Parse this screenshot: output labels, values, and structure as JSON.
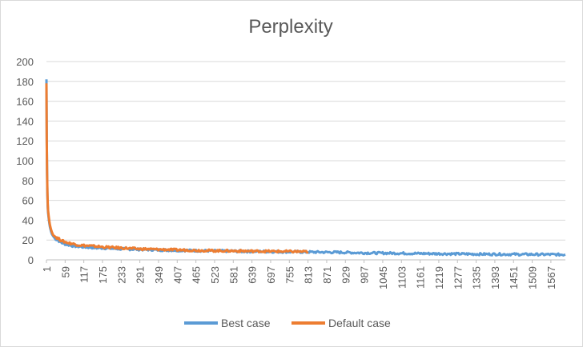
{
  "chart_data": {
    "type": "line",
    "title": "Perplexity",
    "xlabel": "",
    "ylabel": "",
    "ylim": [
      0,
      200
    ],
    "y_ticks": [
      0,
      20,
      40,
      60,
      80,
      100,
      120,
      140,
      160,
      180,
      200
    ],
    "x_ticks": [
      1,
      59,
      117,
      175,
      233,
      291,
      349,
      407,
      465,
      523,
      581,
      639,
      697,
      755,
      813,
      871,
      929,
      987,
      1045,
      1103,
      1161,
      1219,
      1277,
      1335,
      1393,
      1451,
      1509,
      1567
    ],
    "xlim": [
      1,
      1612
    ],
    "grid": true,
    "legend_position": "bottom",
    "series": [
      {
        "name": "Best case",
        "color": "#5b9bd5",
        "x": [
          1,
          2,
          3,
          4,
          5,
          6,
          8,
          10,
          12,
          15,
          18,
          22,
          26,
          30,
          35,
          40,
          45,
          50,
          59,
          70,
          85,
          100,
          117,
          140,
          160,
          175,
          200,
          233,
          260,
          291,
          320,
          349,
          380,
          407,
          440,
          465,
          500,
          523,
          550,
          581,
          610,
          639,
          670,
          697,
          730,
          755,
          790,
          813,
          840,
          871,
          900,
          929,
          960,
          987,
          1020,
          1045,
          1080,
          1103,
          1130,
          1161,
          1190,
          1219,
          1250,
          1277,
          1300,
          1335,
          1360,
          1393,
          1420,
          1451,
          1480,
          1509,
          1540,
          1567,
          1590,
          1612
        ],
        "values": [
          182,
          120,
          85,
          65,
          54,
          48,
          42,
          37,
          33,
          29,
          26,
          24,
          22,
          21,
          20,
          19,
          18,
          17,
          16,
          15,
          14,
          13.5,
          13,
          12.5,
          12,
          12,
          11.5,
          11,
          10.8,
          10.5,
          10.3,
          10,
          9.8,
          9.6,
          9.5,
          9.3,
          9.2,
          9,
          8.9,
          8.8,
          8.6,
          8.5,
          8.4,
          8.3,
          8.2,
          8.1,
          8,
          7.9,
          7.8,
          7.7,
          7.6,
          7.5,
          7.2,
          7,
          6.9,
          6.8,
          6.7,
          6.6,
          6.5,
          6.4,
          6.3,
          6.2,
          6.1,
          6,
          5.9,
          5.8,
          5.7,
          5.7,
          5.6,
          5.6,
          5.5,
          5.5,
          5.4,
          5.4,
          5.3,
          5.3
        ]
      },
      {
        "name": "Default case",
        "color": "#ed7d31",
        "x": [
          1,
          2,
          3,
          4,
          5,
          6,
          8,
          10,
          12,
          15,
          18,
          22,
          26,
          30,
          35,
          40,
          45,
          50,
          59,
          70,
          85,
          100,
          117,
          140,
          160,
          175,
          200,
          233,
          260,
          291,
          320,
          349,
          380,
          407,
          440,
          465,
          500,
          523,
          550,
          581,
          610,
          639,
          670,
          697,
          730,
          755,
          790,
          813
        ],
        "values": [
          178,
          118,
          88,
          68,
          57,
          50,
          44,
          39,
          35,
          31,
          28,
          26,
          24,
          23,
          22,
          21,
          20,
          19,
          18,
          17,
          16,
          15,
          14.5,
          14,
          13.5,
          13,
          12.5,
          12,
          11.5,
          11,
          10.8,
          10.5,
          10.3,
          10,
          9.8,
          9.6,
          9.4,
          9.2,
          9.1,
          9,
          8.9,
          8.8,
          8.7,
          8.6,
          8.5,
          8.4,
          8.3,
          8.2
        ]
      }
    ]
  }
}
